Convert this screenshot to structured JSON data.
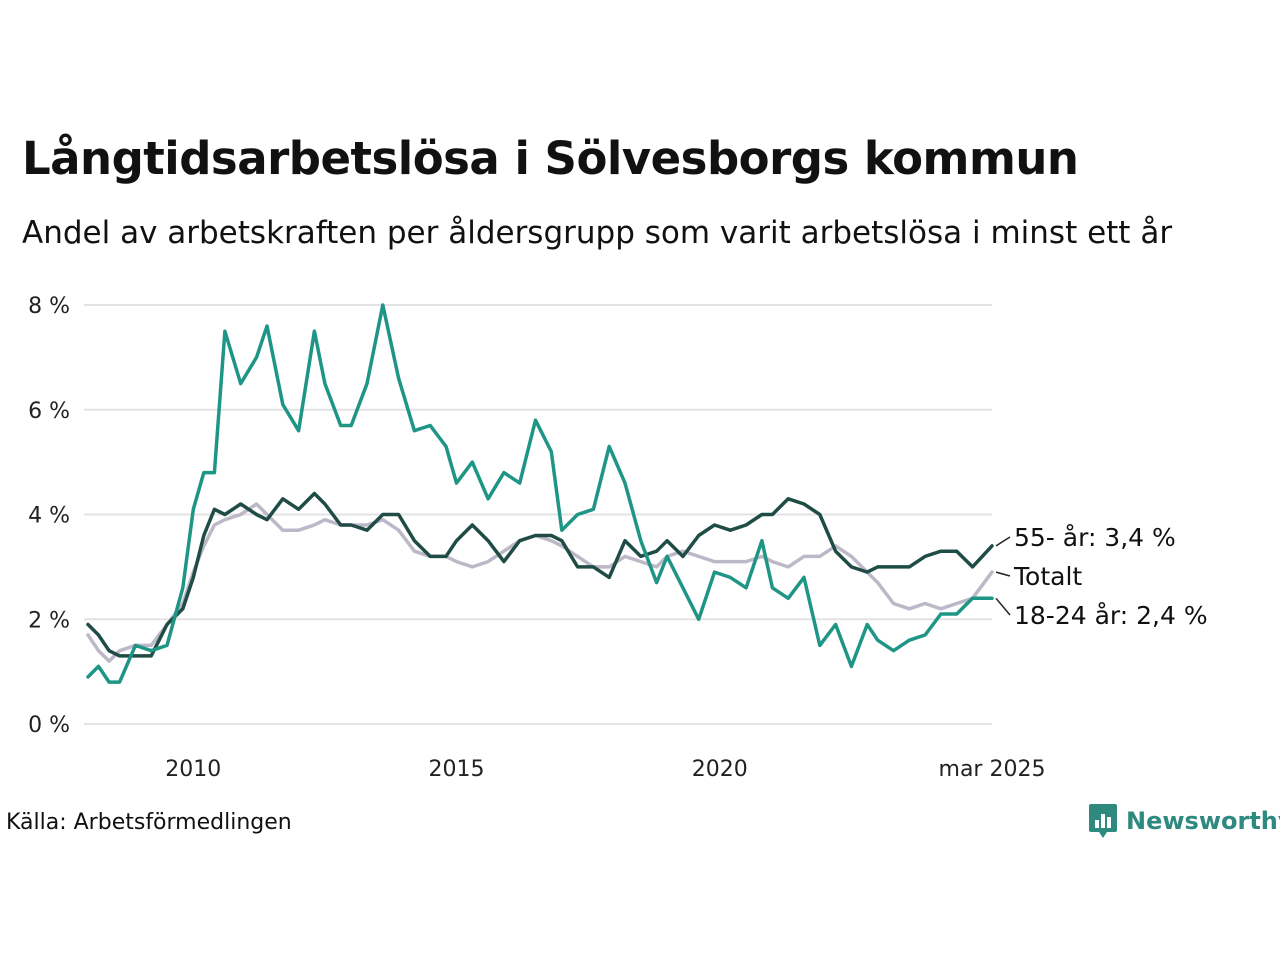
{
  "header": {
    "title": "Långtidsarbetslösa i Sölvesborgs kommun",
    "subtitle": "Andel av arbetskraften per åldersgrupp som varit arbetslösa i minst ett år"
  },
  "footer": {
    "source": "Källa: Arbetsförmedlingen",
    "brand": "Newsworthy",
    "brand_color": "#2e8a7e"
  },
  "chart_data": {
    "type": "line",
    "x_range": [
      2008.0,
      2025.17
    ],
    "ylim": [
      0,
      8
    ],
    "y_ticks": [
      0,
      2,
      4,
      6,
      8
    ],
    "y_tick_labels": [
      "0 %",
      "2 %",
      "4 %",
      "6 %",
      "8 %"
    ],
    "x_ticks": [
      2010,
      2015,
      2020,
      2025.17
    ],
    "x_tick_labels": [
      "2010",
      "2015",
      "2020",
      "mar 2025"
    ],
    "grid": "horizontal",
    "series": [
      {
        "name": "Totalt",
        "label": "Totalt",
        "color": "#bdb8c7",
        "x": [
          2008.0,
          2008.2,
          2008.4,
          2008.6,
          2008.9,
          2009.2,
          2009.5,
          2009.8,
          2010.0,
          2010.2,
          2010.4,
          2010.6,
          2010.9,
          2011.2,
          2011.4,
          2011.7,
          2012.0,
          2012.3,
          2012.5,
          2012.8,
          2013.0,
          2013.3,
          2013.6,
          2013.9,
          2014.2,
          2014.5,
          2014.8,
          2015.0,
          2015.3,
          2015.6,
          2015.9,
          2016.2,
          2016.5,
          2016.8,
          2017.0,
          2017.3,
          2017.6,
          2017.9,
          2018.2,
          2018.5,
          2018.8,
          2019.0,
          2019.3,
          2019.6,
          2019.9,
          2020.2,
          2020.5,
          2020.8,
          2021.0,
          2021.3,
          2021.6,
          2021.9,
          2022.2,
          2022.5,
          2022.8,
          2023.0,
          2023.3,
          2023.6,
          2023.9,
          2024.2,
          2024.5,
          2024.8,
          2025.17
        ],
        "values": [
          1.7,
          1.4,
          1.2,
          1.4,
          1.5,
          1.5,
          1.9,
          2.3,
          2.9,
          3.4,
          3.8,
          3.9,
          4.0,
          4.2,
          4.0,
          3.7,
          3.7,
          3.8,
          3.9,
          3.8,
          3.8,
          3.8,
          3.9,
          3.7,
          3.3,
          3.2,
          3.2,
          3.1,
          3.0,
          3.1,
          3.3,
          3.5,
          3.6,
          3.5,
          3.4,
          3.2,
          3.0,
          3.0,
          3.2,
          3.1,
          3.0,
          3.2,
          3.3,
          3.2,
          3.1,
          3.1,
          3.1,
          3.2,
          3.1,
          3.0,
          3.2,
          3.2,
          3.4,
          3.2,
          2.9,
          2.7,
          2.3,
          2.2,
          2.3,
          2.2,
          2.3,
          2.4,
          2.9
        ]
      },
      {
        "name": "55- år",
        "label": "55- år: 3,4 %",
        "color": "#1f4d46",
        "x": [
          2008.0,
          2008.2,
          2008.4,
          2008.6,
          2008.9,
          2009.2,
          2009.5,
          2009.8,
          2010.0,
          2010.2,
          2010.4,
          2010.6,
          2010.9,
          2011.2,
          2011.4,
          2011.7,
          2012.0,
          2012.3,
          2012.5,
          2012.8,
          2013.0,
          2013.3,
          2013.6,
          2013.9,
          2014.2,
          2014.5,
          2014.8,
          2015.0,
          2015.3,
          2015.6,
          2015.9,
          2016.2,
          2016.5,
          2016.8,
          2017.0,
          2017.3,
          2017.6,
          2017.9,
          2018.2,
          2018.5,
          2018.8,
          2019.0,
          2019.3,
          2019.6,
          2019.9,
          2020.2,
          2020.5,
          2020.8,
          2021.0,
          2021.3,
          2021.6,
          2021.9,
          2022.2,
          2022.5,
          2022.8,
          2023.0,
          2023.3,
          2023.6,
          2023.9,
          2024.2,
          2024.5,
          2024.8,
          2025.17
        ],
        "values": [
          1.9,
          1.7,
          1.4,
          1.3,
          1.3,
          1.3,
          1.9,
          2.2,
          2.8,
          3.6,
          4.1,
          4.0,
          4.2,
          4.0,
          3.9,
          4.3,
          4.1,
          4.4,
          4.2,
          3.8,
          3.8,
          3.7,
          4.0,
          4.0,
          3.5,
          3.2,
          3.2,
          3.5,
          3.8,
          3.5,
          3.1,
          3.5,
          3.6,
          3.6,
          3.5,
          3.0,
          3.0,
          2.8,
          3.5,
          3.2,
          3.3,
          3.5,
          3.2,
          3.6,
          3.8,
          3.7,
          3.8,
          4.0,
          4.0,
          4.3,
          4.2,
          4.0,
          3.3,
          3.0,
          2.9,
          3.0,
          3.0,
          3.0,
          3.2,
          3.3,
          3.3,
          3.0,
          3.4
        ]
      },
      {
        "name": "18-24 år",
        "label": "18-24 år: 2,4 %",
        "color": "#1e9585",
        "x": [
          2008.0,
          2008.2,
          2008.4,
          2008.6,
          2008.9,
          2009.2,
          2009.5,
          2009.8,
          2010.0,
          2010.2,
          2010.4,
          2010.6,
          2010.9,
          2011.2,
          2011.4,
          2011.7,
          2012.0,
          2012.3,
          2012.5,
          2012.8,
          2013.0,
          2013.3,
          2013.6,
          2013.9,
          2014.2,
          2014.5,
          2014.8,
          2015.0,
          2015.3,
          2015.6,
          2015.9,
          2016.2,
          2016.5,
          2016.8,
          2017.0,
          2017.3,
          2017.6,
          2017.9,
          2018.2,
          2018.5,
          2018.8,
          2019.0,
          2019.3,
          2019.6,
          2019.9,
          2020.2,
          2020.5,
          2020.8,
          2021.0,
          2021.3,
          2021.6,
          2021.9,
          2022.2,
          2022.5,
          2022.8,
          2023.0,
          2023.3,
          2023.6,
          2023.9,
          2024.2,
          2024.5,
          2024.8,
          2025.17
        ],
        "values": [
          0.9,
          1.1,
          0.8,
          0.8,
          1.5,
          1.4,
          1.5,
          2.6,
          4.1,
          4.8,
          4.8,
          7.5,
          6.5,
          7.0,
          7.6,
          6.1,
          5.6,
          7.5,
          6.5,
          5.7,
          5.7,
          6.5,
          8.0,
          6.6,
          5.6,
          5.7,
          5.3,
          4.6,
          5.0,
          4.3,
          4.8,
          4.6,
          5.8,
          5.2,
          3.7,
          4.0,
          4.1,
          5.3,
          4.6,
          3.5,
          2.7,
          3.2,
          2.6,
          2.0,
          2.9,
          2.8,
          2.6,
          3.5,
          2.6,
          2.4,
          2.8,
          1.5,
          1.9,
          1.1,
          1.9,
          1.6,
          1.4,
          1.6,
          1.7,
          2.1,
          2.1,
          2.4,
          2.4
        ]
      }
    ]
  }
}
